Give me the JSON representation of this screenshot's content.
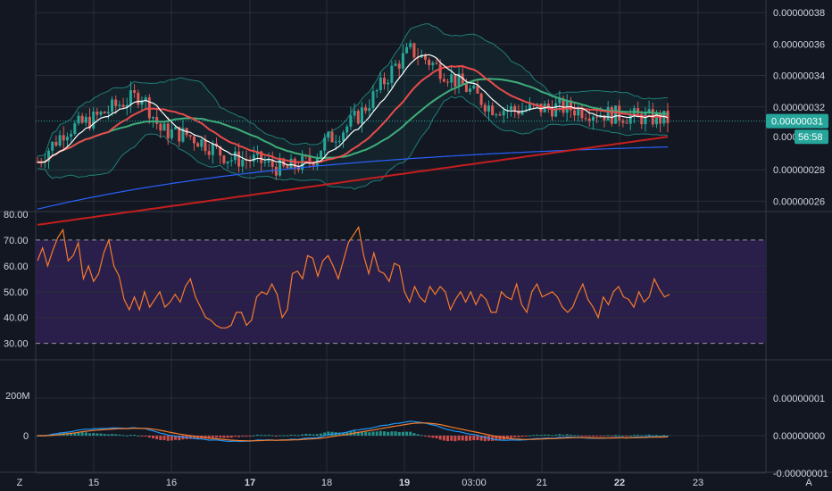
{
  "colors": {
    "background": "#131722",
    "grid": "#2a2e39",
    "text": "#d1d4dc",
    "candle_up": "#26a69a",
    "candle_down": "#ef5350",
    "bb_fill": "#26a69a",
    "rsi_band_fill": "#2a1e4a",
    "rsi_line": "#f57c2c",
    "macd_line": "#2196f3",
    "signal_line": "#f57c2c",
    "hist_up": "#26a69a",
    "hist_down": "#ef5350",
    "ma_white": "#ffffff",
    "ma_red_fast": "#e84b4b",
    "ma_green": "#3fae7a",
    "ma_blue": "#2962ff",
    "ma_red_slow": "#c41e1e",
    "price_tag": "#26a69a"
  },
  "chart_data": [
    {
      "type": "candlestick",
      "panel": "price",
      "y_ticks": [
        "0.00000038",
        "0.00000036",
        "0.00000034",
        "0.00000032",
        "0.00000028",
        "0.00000026"
      ],
      "ylim": [
        2.54e-07,
        3.88e-07
      ],
      "last_price_label": "0.00000031",
      "last_price": 3.11e-07,
      "countdown_prefix": "0.000",
      "countdown_label": "56:58",
      "countdown_value": 3.01e-07,
      "overlays": [
        "Bollinger Bands",
        "MA (white)",
        "MA (red fast)",
        "MA (green)",
        "MA (blue)",
        "MA (red slow)"
      ]
    },
    {
      "type": "line",
      "panel": "rsi",
      "series": [
        {
          "name": "",
          "color": "#f57c2c"
        }
      ],
      "y_ticks": [
        "80.00",
        "70.00",
        "60.00",
        "50.00",
        "40.00",
        "30.00"
      ],
      "ylim": [
        80,
        24
      ],
      "band": [
        30,
        70
      ],
      "values": [
        62,
        67,
        60,
        66,
        71,
        74,
        62,
        64,
        69,
        55,
        60,
        54,
        57,
        65,
        70,
        60,
        56,
        47,
        43,
        48,
        43,
        50,
        44,
        47,
        50,
        44,
        46,
        49,
        46,
        52,
        55,
        48,
        44,
        40,
        39,
        37,
        36,
        36,
        37,
        42,
        42,
        37,
        39,
        48,
        50,
        49,
        53,
        49,
        40,
        43,
        57,
        58,
        55,
        64,
        63,
        56,
        62,
        64,
        60,
        55,
        62,
        69,
        72,
        75,
        64,
        57,
        65,
        58,
        57,
        54,
        61,
        60,
        50,
        46,
        52,
        48,
        46,
        52,
        49,
        52,
        50,
        43,
        47,
        50,
        46,
        50,
        45,
        49,
        47,
        42,
        42,
        50,
        48,
        47,
        53,
        45,
        42,
        50,
        53,
        48,
        49,
        50,
        48,
        44,
        42,
        44,
        49,
        53,
        47,
        44,
        40,
        48,
        45,
        50,
        52,
        48,
        47,
        44,
        50,
        46,
        48,
        55,
        51,
        48,
        49
      ]
    },
    {
      "type": "macd",
      "panel": "macd",
      "y_ticks_right": [
        "0.00000001",
        "0.00000000",
        "-0.00000001"
      ],
      "y_ticks_left": [
        "200M",
        "0"
      ],
      "series": [
        {
          "name": "",
          "color": "#2196f3"
        },
        {
          "name": "",
          "color": "#f57c2c"
        }
      ]
    }
  ],
  "x_axis": {
    "ticks": [
      "15",
      "16",
      "17",
      "18",
      "19",
      "03:00",
      "21",
      "22",
      "23"
    ],
    "bold_ticks": [
      "17",
      "19",
      "22"
    ]
  },
  "footer": {
    "left_icon_label": "Z",
    "right_icon_label": "A"
  }
}
